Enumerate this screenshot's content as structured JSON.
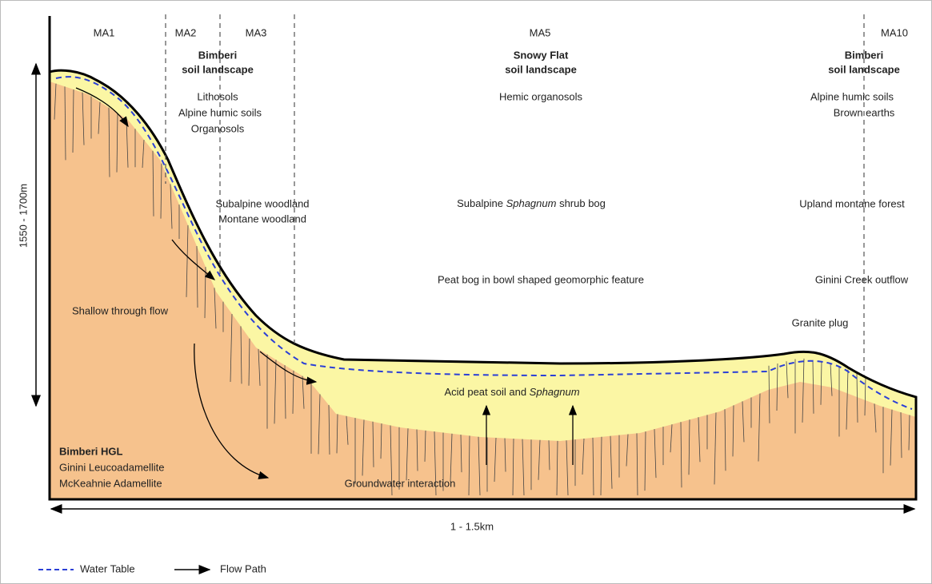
{
  "zones": [
    "MA1",
    "MA2",
    "MA3",
    "MA5",
    "MA10"
  ],
  "landscapes": [
    {
      "name": "Bimberi",
      "label": "soil landscape"
    },
    {
      "name": "Snowy Flat",
      "label": "soil landscape"
    },
    {
      "name": "Bimberi",
      "label": "soil landscape"
    }
  ],
  "soils": [
    [
      "Lithosols",
      "Alpine humic soils",
      "Organosols"
    ],
    [
      "Hemic organosols"
    ],
    [
      "Alpine humic soils",
      "Brown earths"
    ]
  ],
  "vegetation": [
    [
      "Subalpine woodland",
      "Montane woodland"
    ],
    [
      "Subalpine ",
      "Sphagnum",
      " shrub bog"
    ],
    [
      "Upland montane forest"
    ]
  ],
  "features": {
    "bowl": "Peat bog in bowl shaped geomorphic feature",
    "outflow": "Ginini Creek outflow",
    "plug": "Granite plug",
    "through_flow": "Shallow through flow",
    "peat": [
      "Acid peat soil and ",
      "Sphagnum"
    ],
    "groundwater": "Groundwater interaction"
  },
  "geology": {
    "title": "Bimberi HGL",
    "units": [
      "Ginini Leucoadamellite",
      "McKeahnie Adamellite"
    ]
  },
  "dimensions": {
    "height": "1550 - 1700m",
    "width": "1 - 1.5km"
  },
  "legend": {
    "water_table": "Water Table",
    "flow_path": "Flow Path"
  }
}
